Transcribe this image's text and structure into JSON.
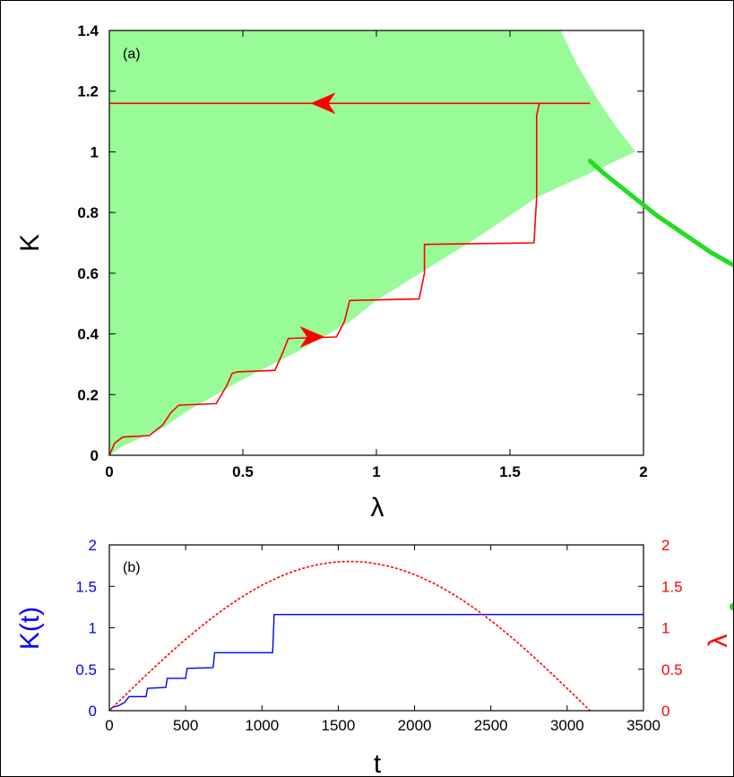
{
  "chart_data": [
    {
      "panel": "(a)",
      "type": "area",
      "xlabel": "λ",
      "ylabel": "K",
      "xlim": [
        0,
        2
      ],
      "ylim": [
        0,
        1.4
      ],
      "xticks": [
        "0",
        "0.5",
        "1",
        "1.5",
        "2"
      ],
      "yticks": [
        "0",
        "0.2",
        "0.4",
        "0.6",
        "0.8",
        "1",
        "1.2",
        "1.4"
      ],
      "colors": {
        "region": "#98fb98",
        "curve": "#ff0000",
        "offpage_line": "#22dd22",
        "axes": "#000000"
      },
      "region_lower_boundary": [
        [
          0,
          0
        ],
        [
          0.05,
          0.03
        ],
        [
          0.1,
          0.05
        ],
        [
          0.2,
          0.09
        ],
        [
          0.3,
          0.15
        ],
        [
          0.5,
          0.25
        ],
        [
          0.7,
          0.34
        ],
        [
          0.9,
          0.44
        ],
        [
          1.0,
          0.51
        ],
        [
          1.2,
          0.62
        ],
        [
          1.4,
          0.73
        ],
        [
          1.6,
          0.85
        ],
        [
          1.8,
          0.93
        ],
        [
          1.97,
          1.0
        ]
      ],
      "region_upper_boundary": [
        [
          0,
          1.4
        ],
        [
          1.69,
          1.4
        ],
        [
          1.75,
          1.29
        ],
        [
          1.83,
          1.17
        ],
        [
          1.9,
          1.08
        ],
        [
          1.97,
          1.0
        ]
      ],
      "staircase_forward": [
        [
          0,
          0
        ],
        [
          0.02,
          0.04
        ],
        [
          0.05,
          0.06
        ],
        [
          0.15,
          0.065
        ],
        [
          0.2,
          0.1
        ],
        [
          0.23,
          0.14
        ],
        [
          0.26,
          0.165
        ],
        [
          0.4,
          0.17
        ],
        [
          0.44,
          0.23
        ],
        [
          0.46,
          0.27
        ],
        [
          0.48,
          0.275
        ],
        [
          0.62,
          0.28
        ],
        [
          0.65,
          0.34
        ],
        [
          0.67,
          0.385
        ],
        [
          0.85,
          0.39
        ],
        [
          0.88,
          0.44
        ],
        [
          0.9,
          0.51
        ],
        [
          1.16,
          0.515
        ],
        [
          1.18,
          0.6
        ],
        [
          1.18,
          0.695
        ],
        [
          1.59,
          0.7
        ],
        [
          1.6,
          0.85
        ],
        [
          1.6,
          1.12
        ],
        [
          1.61,
          1.16
        ]
      ],
      "return_line": {
        "K": 1.16,
        "from": 1.8,
        "to": 0
      },
      "arrows": [
        {
          "lambda": 0.8,
          "K": 1.16,
          "direction": "left"
        },
        {
          "lambda": 0.76,
          "K": 0.39,
          "direction": "right"
        }
      ],
      "offpage_line": [
        [
          1.8,
          0.97
        ],
        [
          1.85,
          0.93
        ],
        [
          1.95,
          0.86
        ],
        [
          2.05,
          0.79
        ],
        [
          2.15,
          0.73
        ],
        [
          2.25,
          0.67
        ],
        [
          2.35,
          0.62
        ]
      ]
    },
    {
      "panel": "(b)",
      "type": "line",
      "xlabel": "t",
      "ylabel_left": "K(t)",
      "ylabel_right": "λ",
      "xlim": [
        0,
        3500
      ],
      "ylim_left": [
        0,
        2
      ],
      "ylim_right": [
        0,
        2
      ],
      "xticks": [
        "0",
        "500",
        "1000",
        "1500",
        "2000",
        "2500",
        "3000",
        "3500"
      ],
      "yticks_left": [
        "0",
        "0.5",
        "1",
        "1.5",
        "2"
      ],
      "yticks_right": [
        "0",
        "0.5",
        "1",
        "1.5",
        "2"
      ],
      "series": [
        {
          "axis": "left",
          "color": "#0000ff",
          "style": "solid",
          "points": [
            [
              0,
              0
            ],
            [
              20,
              0.04
            ],
            [
              60,
              0.06
            ],
            [
              100,
              0.1
            ],
            [
              130,
              0.17
            ],
            [
              240,
              0.17
            ],
            [
              250,
              0.27
            ],
            [
              370,
              0.28
            ],
            [
              380,
              0.39
            ],
            [
              500,
              0.39
            ],
            [
              510,
              0.51
            ],
            [
              680,
              0.52
            ],
            [
              690,
              0.7
            ],
            [
              1070,
              0.7
            ],
            [
              1080,
              1.16
            ],
            [
              3500,
              1.16
            ]
          ]
        },
        {
          "axis": "right",
          "color": "#ff0000",
          "style": "dashed",
          "function": "1.8*sin(pi*t/3150)",
          "t_range": [
            0,
            3150
          ],
          "peak": [
            1575,
            1.8
          ]
        }
      ]
    }
  ]
}
